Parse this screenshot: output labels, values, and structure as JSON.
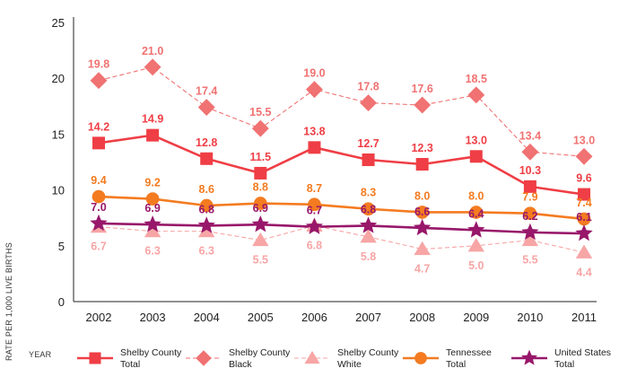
{
  "chart_data": {
    "type": "line",
    "title": "",
    "xlabel": "YEAR",
    "ylabel": "RATE PER 1,000 LIVE BIRTHS",
    "ylim": [
      0,
      25
    ],
    "yticks": [
      "0",
      "5",
      "10",
      "15",
      "20",
      "25"
    ],
    "categories": [
      "2002",
      "2003",
      "2004",
      "2005",
      "2006",
      "2007",
      "2008",
      "2009",
      "2010",
      "2011"
    ],
    "series": [
      {
        "key": "shelby_total",
        "name_line1": "Shelby County",
        "name_line2": "Total",
        "color": "#EF3E45",
        "marker": "square",
        "dashed": false,
        "label_position": "above",
        "values": [
          14.2,
          14.9,
          12.8,
          11.5,
          13.8,
          12.7,
          12.3,
          13.0,
          10.3,
          9.6
        ],
        "labels": [
          "14.2",
          "14.9",
          "12.8",
          "11.5",
          "13.8",
          "12.7",
          "12.3",
          "13.0",
          "10.3",
          "9.6"
        ]
      },
      {
        "key": "shelby_black",
        "name_line1": "Shelby County",
        "name_line2": "Black",
        "color": "#F07272",
        "marker": "diamond",
        "dashed": true,
        "label_position": "above",
        "values": [
          19.8,
          21.0,
          17.4,
          15.5,
          19.0,
          17.8,
          17.6,
          18.5,
          13.4,
          13.0
        ],
        "labels": [
          "19.8",
          "21.0",
          "17.4",
          "15.5",
          "19.0",
          "17.8",
          "17.6",
          "18.5",
          "13.4",
          "13.0"
        ]
      },
      {
        "key": "shelby_white",
        "name_line1": "Shelby County",
        "name_line2": "White",
        "color": "#F7A5A5",
        "marker": "triangle",
        "dashed": true,
        "label_position": "below",
        "values": [
          6.7,
          6.3,
          6.3,
          5.5,
          6.8,
          5.8,
          4.7,
          5.0,
          5.5,
          4.4
        ],
        "labels": [
          "6.7",
          "6.3",
          "6.3",
          "5.5",
          "6.8",
          "5.8",
          "4.7",
          "5.0",
          "5.5",
          "4.4"
        ]
      },
      {
        "key": "tennessee_total",
        "name_line1": "Tennessee",
        "name_line2": "Total",
        "color": "#F47B20",
        "marker": "circle",
        "dashed": false,
        "label_position": "above",
        "values": [
          9.4,
          9.2,
          8.6,
          8.8,
          8.7,
          8.3,
          8.0,
          8.0,
          7.9,
          7.4
        ],
        "labels": [
          "9.4",
          "9.2",
          "8.6",
          "8.8",
          "8.7",
          "8.3",
          "8.0",
          "8.0",
          "7.9",
          "7.4"
        ]
      },
      {
        "key": "us_total",
        "name_line1": "United States",
        "name_line2": "Total",
        "color": "#98176A",
        "marker": "star",
        "dashed": false,
        "label_position": "above",
        "values": [
          7.0,
          6.9,
          6.8,
          6.9,
          6.7,
          6.8,
          6.6,
          6.4,
          6.2,
          6.1
        ],
        "labels": [
          "7.0",
          "6.9",
          "6.8",
          "6.9",
          "6.7",
          "6.8",
          "6.6",
          "6.4",
          "6.2",
          "6.1"
        ]
      }
    ]
  }
}
